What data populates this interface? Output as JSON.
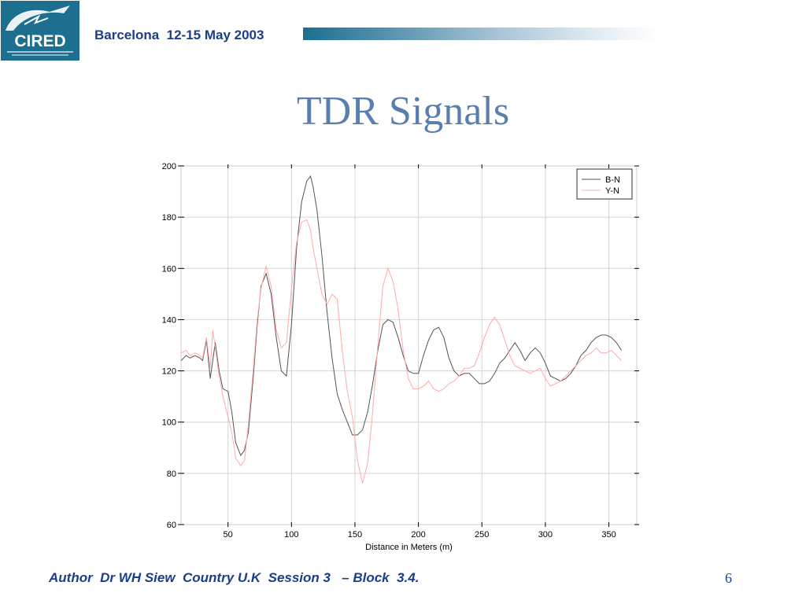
{
  "header": {
    "logo_text": "CIRED",
    "conference": "Barcelona  12-15 May 2003"
  },
  "slide": {
    "title": "TDR Signals",
    "page_number": "6"
  },
  "footer": {
    "text": "Author  Dr WH Siew  Country U.K  Session 3   – Block  3.4."
  },
  "chart_data": {
    "type": "line",
    "title": "",
    "xlabel": "Distance in Meters (m)",
    "ylabel": "",
    "xlim": [
      13,
      372
    ],
    "ylim": [
      60,
      200
    ],
    "xticks": [
      50,
      100,
      150,
      200,
      250,
      300,
      350
    ],
    "yticks": [
      60,
      80,
      100,
      120,
      140,
      160,
      180,
      200
    ],
    "grid": true,
    "legend_position": "top-right",
    "series": [
      {
        "name": "B-N",
        "color": "#555555",
        "x": [
          13,
          17,
          20,
          24,
          28,
          30,
          33,
          36,
          38,
          40,
          43,
          46,
          50,
          53,
          56,
          60,
          63,
          66,
          70,
          73,
          76,
          80,
          84,
          88,
          92,
          96,
          100,
          104,
          108,
          112,
          115,
          117,
          120,
          124,
          128,
          132,
          136,
          140,
          144,
          148,
          152,
          156,
          160,
          164,
          168,
          172,
          176,
          180,
          184,
          188,
          192,
          196,
          200,
          204,
          208,
          212,
          216,
          220,
          224,
          228,
          232,
          236,
          240,
          244,
          248,
          252,
          256,
          260,
          264,
          268,
          272,
          276,
          280,
          284,
          288,
          292,
          296,
          300,
          304,
          308,
          312,
          316,
          320,
          324,
          328,
          332,
          336,
          340,
          344,
          348,
          352,
          356,
          360
        ],
        "values": [
          124,
          126,
          125,
          126,
          125,
          124,
          132,
          117,
          124,
          131,
          120,
          113,
          112,
          104,
          92,
          87,
          89,
          96,
          118,
          138,
          153,
          158,
          150,
          133,
          120,
          118,
          138,
          168,
          186,
          194,
          196,
          192,
          183,
          165,
          143,
          125,
          111,
          105,
          100,
          95,
          95,
          97,
          104,
          115,
          128,
          138,
          140,
          139,
          133,
          126,
          120,
          119,
          119,
          126,
          132,
          136,
          137,
          133,
          125,
          120,
          118,
          119,
          119,
          117,
          115,
          115,
          116,
          119,
          123,
          125,
          128,
          131,
          128,
          124,
          127,
          129,
          127,
          123,
          118,
          117,
          116,
          117,
          119,
          122,
          126,
          128,
          131,
          133,
          134,
          134,
          133,
          131,
          128
        ]
      },
      {
        "name": "Y-N",
        "color": "#ffaaaa",
        "x": [
          13,
          17,
          20,
          24,
          28,
          30,
          33,
          36,
          38,
          40,
          43,
          46,
          50,
          53,
          56,
          60,
          63,
          66,
          70,
          73,
          76,
          80,
          84,
          88,
          92,
          96,
          100,
          104,
          108,
          112,
          115,
          117,
          120,
          124,
          128,
          132,
          136,
          140,
          144,
          148,
          152,
          156,
          160,
          164,
          168,
          172,
          176,
          180,
          184,
          188,
          192,
          196,
          200,
          204,
          208,
          212,
          216,
          220,
          224,
          228,
          232,
          236,
          240,
          244,
          248,
          252,
          256,
          260,
          264,
          268,
          272,
          276,
          280,
          284,
          288,
          292,
          296,
          300,
          304,
          308,
          312,
          316,
          320,
          324,
          328,
          332,
          336,
          340,
          344,
          348,
          352,
          356,
          360
        ],
        "values": [
          127,
          128,
          126,
          127,
          126,
          125,
          133,
          121,
          136,
          129,
          118,
          110,
          102,
          96,
          86,
          83,
          85,
          99,
          121,
          140,
          152,
          161,
          153,
          136,
          129,
          131,
          152,
          170,
          178,
          179,
          175,
          168,
          160,
          150,
          146,
          150,
          148,
          128,
          112,
          102,
          85,
          76,
          84,
          104,
          130,
          153,
          160,
          155,
          144,
          128,
          117,
          113,
          113,
          114,
          116,
          113,
          112,
          113,
          115,
          116,
          118,
          121,
          121,
          122,
          127,
          133,
          138,
          141,
          138,
          132,
          126,
          122,
          121,
          120,
          119,
          120,
          121,
          117,
          114,
          115,
          116,
          118,
          120,
          122,
          124,
          126,
          127,
          129,
          127,
          127,
          128,
          126,
          124
        ]
      }
    ]
  }
}
